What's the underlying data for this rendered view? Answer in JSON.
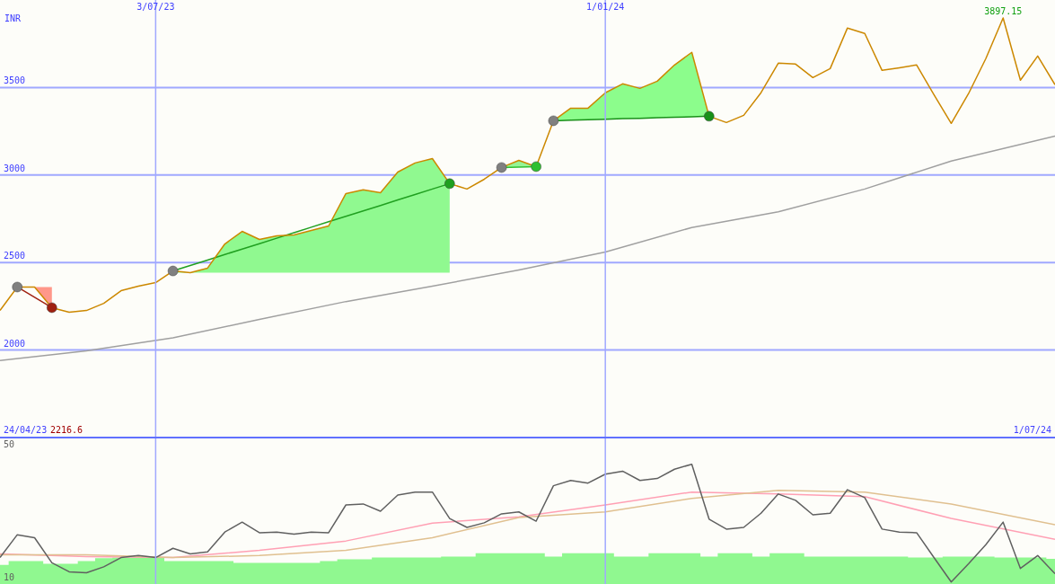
{
  "chart_data": [
    {
      "type": "line",
      "ylabel": "INR",
      "xlim": [
        "2023-05-01",
        "2024-07-01"
      ],
      "ylim": [
        1500,
        4000
      ],
      "yticks": [
        2000,
        2500,
        3000,
        3500
      ],
      "xticks": [
        {
          "value": "2023-07-03",
          "label": "3/07/23"
        },
        {
          "value": "2024-01-01",
          "label": "1/01/24"
        }
      ],
      "grid": true,
      "x": [
        "2023-05-01",
        "2023-05-08",
        "2023-05-15",
        "2023-05-22",
        "2023-05-29",
        "2023-06-05",
        "2023-06-12",
        "2023-06-19",
        "2023-06-26",
        "2023-07-03",
        "2023-07-10",
        "2023-07-17",
        "2023-07-24",
        "2023-07-31",
        "2023-08-07",
        "2023-08-14",
        "2023-08-21",
        "2023-08-28",
        "2023-09-04",
        "2023-09-11",
        "2023-09-18",
        "2023-09-25",
        "2023-10-02",
        "2023-10-09",
        "2023-10-16",
        "2023-10-23",
        "2023-10-30",
        "2023-11-06",
        "2023-11-13",
        "2023-11-20",
        "2023-11-27",
        "2023-12-04",
        "2023-12-11",
        "2023-12-18",
        "2023-12-25",
        "2024-01-01",
        "2024-01-08",
        "2024-01-15",
        "2024-01-22",
        "2024-01-29",
        "2024-02-05",
        "2024-02-12",
        "2024-02-19",
        "2024-02-26",
        "2024-03-04",
        "2024-03-11",
        "2024-03-18",
        "2024-03-25",
        "2024-04-01",
        "2024-04-08",
        "2024-04-15",
        "2024-04-22",
        "2024-04-29",
        "2024-05-06",
        "2024-05-13",
        "2024-05-20",
        "2024-05-27",
        "2024-06-03",
        "2024-06-10",
        "2024-06-17",
        "2024-06-24",
        "2024-07-01"
      ],
      "series": [
        {
          "color": "#a0a0a0",
          "x": [
            "2023-05-01",
            "2023-06-05",
            "2023-07-10",
            "2023-08-14",
            "2023-09-18",
            "2023-10-23",
            "2023-11-27",
            "2024-01-01",
            "2024-02-05",
            "2024-03-11",
            "2024-04-15",
            "2024-05-20",
            "2024-07-01"
          ],
          "values": [
            1940,
            1995,
            2070,
            2175,
            2277,
            2365,
            2457,
            2560,
            2700,
            2790,
            2920,
            3080,
            3223
          ]
        },
        {
          "color": "#a02010",
          "x": [
            "2023-05-08",
            "2023-05-15",
            "2023-05-22"
          ],
          "values": [
            2360,
            2301,
            2242
          ],
          "lower": [
            2360,
            2360,
            2242
          ],
          "upper": [
            2360,
            2360,
            2360
          ]
        },
        {
          "color": "#20a020",
          "x": [
            "2023-07-10",
            "2023-07-17",
            "2023-07-24",
            "2023-07-31",
            "2023-08-07",
            "2023-08-14",
            "2023-08-21",
            "2023-08-28",
            "2023-09-04",
            "2023-09-11",
            "2023-09-18",
            "2023-09-25",
            "2023-10-02",
            "2023-10-09",
            "2023-10-16",
            "2023-10-23",
            "2023-10-30"
          ],
          "values": [
            2452,
            2483,
            2514,
            2546,
            2577,
            2608,
            2639,
            2670,
            2702,
            2733,
            2764,
            2795,
            2826,
            2858,
            2889,
            2920,
            2951
          ],
          "lower": [
            2442,
            2442,
            2442,
            2442,
            2442,
            2442,
            2442,
            2442,
            2442,
            2442,
            2442,
            2442,
            2442,
            2442,
            2442,
            2442,
            2442
          ],
          "upper": [
            2452,
            2442,
            2468,
            2606,
            2678,
            2632,
            2653,
            2658,
            2683,
            2709,
            2894,
            2915,
            2899,
            3017,
            3069,
            3094,
            2951
          ]
        },
        {
          "color": "#30c030",
          "x": [
            "2023-11-20",
            "2023-11-27",
            "2023-12-04"
          ],
          "values": [
            3043,
            3045,
            3048
          ],
          "lower": [
            3043,
            3045,
            3048
          ],
          "upper": [
            3043,
            3084,
            3048
          ]
        },
        {
          "color": "#189018",
          "x": [
            "2023-12-11",
            "2023-12-18",
            "2023-12-25",
            "2024-01-01",
            "2024-01-08",
            "2024-01-15",
            "2024-01-22",
            "2024-01-29",
            "2024-02-05",
            "2024-02-12"
          ],
          "values": [
            3310,
            3313,
            3316,
            3319,
            3322,
            3324,
            3327,
            3330,
            3333,
            3336
          ],
          "lower": [
            3310,
            3313,
            3316,
            3319,
            3322,
            3324,
            3327,
            3330,
            3333,
            3336
          ],
          "upper": [
            3310,
            3382,
            3382,
            3470,
            3521,
            3495,
            3536,
            3629,
            3701,
            3336
          ]
        },
        {
          "color": "#cc8800",
          "values": [
            2226,
            2360,
            2360,
            2242,
            2216.6,
            2226,
            2267,
            2339,
            2365,
            2385,
            2452,
            2442,
            2468,
            2606,
            2678,
            2632,
            2653,
            2658,
            2683,
            2709,
            2894,
            2915,
            2899,
            3017,
            3069,
            3094,
            2951,
            2920,
            2976,
            3043,
            3084,
            3048,
            3310,
            3382,
            3382,
            3470,
            3521,
            3495,
            3536,
            3629,
            3701,
            3336,
            3300,
            3341,
            3470,
            3639,
            3634,
            3557,
            3608,
            3840,
            3809,
            3598,
            3613,
            3629,
            3459,
            3295,
            3465,
            3665,
            3897.15,
            3542,
            3680,
            3516
          ]
        },
        {
          "type": "scatter",
          "color": "#808080",
          "marker": "circle",
          "x": [
            "2023-05-08",
            "2023-07-10",
            "2023-11-20",
            "2023-12-11"
          ],
          "values": [
            2360,
            2452,
            3043,
            3310
          ]
        },
        {
          "type": "scatter",
          "colors": [
            "#a02010",
            "#20a020",
            "#30c030",
            "#189018"
          ],
          "marker": "circle",
          "x": [
            "2023-05-22",
            "2023-10-30",
            "2023-12-04",
            "2024-02-12"
          ],
          "values": [
            2242,
            2951,
            3048,
            3336
          ]
        }
      ],
      "annotations": [
        "24/04/23",
        "2216.6",
        "1/07/24",
        {
          "text": "3897.15",
          "x": "2024-06-10",
          "y": 3897.15
        }
      ]
    },
    {
      "type": "line",
      "xlim": [
        "2023-05-01",
        "2024-07-01"
      ],
      "ylim": [
        8,
        52
      ],
      "yticks": [
        10,
        50
      ],
      "xticks": [
        {
          "value": "2023-07-03",
          "label": null
        },
        {
          "value": "2024-01-01",
          "label": null
        }
      ],
      "grid": "x",
      "tick_labels": "y",
      "x": [
        "2023-05-01",
        "2023-05-08",
        "2023-05-15",
        "2023-05-22",
        "2023-05-29",
        "2023-06-05",
        "2023-06-12",
        "2023-06-19",
        "2023-06-26",
        "2023-07-03",
        "2023-07-10",
        "2023-07-17",
        "2023-07-24",
        "2023-07-31",
        "2023-08-07",
        "2023-08-14",
        "2023-08-21",
        "2023-08-28",
        "2023-09-04",
        "2023-09-11",
        "2023-09-18",
        "2023-09-25",
        "2023-10-02",
        "2023-10-09",
        "2023-10-16",
        "2023-10-23",
        "2023-10-30",
        "2023-11-06",
        "2023-11-13",
        "2023-11-20",
        "2023-11-27",
        "2023-12-04",
        "2023-12-11",
        "2023-12-18",
        "2023-12-25",
        "2024-01-01",
        "2024-01-08",
        "2024-01-15",
        "2024-01-22",
        "2024-01-29",
        "2024-02-05",
        "2024-02-12",
        "2024-02-19",
        "2024-02-26",
        "2024-03-04",
        "2024-03-11",
        "2024-03-18",
        "2024-03-25",
        "2024-04-01",
        "2024-04-08",
        "2024-04-15",
        "2024-04-22",
        "2024-04-29",
        "2024-05-06",
        "2024-05-13",
        "2024-05-20",
        "2024-05-27",
        "2024-06-03",
        "2024-06-10",
        "2024-06-17",
        "2024-06-24",
        "2024-07-01"
      ],
      "series": [
        {
          "type": "area",
          "color": "#90f890",
          "values": [
            13.8,
            14.9,
            14.9,
            14.1,
            14.1,
            14.9,
            15.8,
            16.0,
            16.0,
            16.0,
            14.9,
            14.9,
            14.9,
            14.9,
            14.4,
            14.4,
            14.4,
            14.4,
            14.4,
            14.9,
            15.5,
            15.5,
            16.0,
            16.0,
            16.0,
            16.0,
            16.3,
            16.3,
            17.3,
            17.3,
            17.3,
            17.3,
            16.3,
            17.3,
            17.3,
            17.3,
            16.3,
            16.3,
            17.3,
            17.3,
            17.3,
            16.3,
            17.3,
            17.3,
            16.3,
            17.3,
            17.3,
            16.3,
            16.3,
            16.3,
            16.3,
            16.3,
            16.3,
            16.0,
            16.0,
            16.3,
            16.3,
            16.3,
            16.0,
            16.0,
            16.0,
            15.6
          ]
        },
        {
          "color": "#ffa0b4",
          "x": [
            "2023-05-01",
            "2023-06-05",
            "2023-07-10",
            "2023-08-14",
            "2023-09-18",
            "2023-10-23",
            "2023-11-27",
            "2024-01-01",
            "2024-02-05",
            "2024-03-11",
            "2024-04-15",
            "2024-05-20",
            "2024-07-01"
          ],
          "values": [
            17.1,
            16.3,
            16.0,
            18.2,
            21.0,
            26.4,
            28.3,
            31.9,
            35.8,
            35.2,
            34.4,
            27.8,
            21.5
          ]
        },
        {
          "color": "#e0c090",
          "x": [
            "2023-05-01",
            "2023-06-05",
            "2023-07-10",
            "2023-08-14",
            "2023-09-18",
            "2023-10-23",
            "2023-11-27",
            "2024-01-01",
            "2024-02-05",
            "2024-03-11",
            "2024-04-15",
            "2024-05-20",
            "2024-07-01"
          ],
          "values": [
            16.8,
            16.8,
            16.0,
            16.6,
            18.2,
            22.0,
            28.1,
            29.8,
            33.9,
            36.3,
            35.8,
            32.2,
            25.9
          ]
        },
        {
          "color": "#606060",
          "values": [
            16.0,
            22.9,
            22.0,
            14.4,
            11.7,
            11.4,
            13.2,
            16.0,
            16.6,
            16.0,
            18.8,
            17.1,
            17.7,
            23.7,
            26.7,
            23.5,
            23.7,
            23.1,
            23.7,
            23.5,
            31.9,
            32.2,
            30.0,
            34.9,
            35.8,
            35.8,
            27.8,
            25.1,
            26.5,
            29.2,
            29.8,
            27.0,
            37.7,
            39.3,
            38.5,
            41.2,
            42.1,
            39.3,
            39.9,
            42.7,
            44.2,
            27.6,
            24.6,
            25.1,
            29.4,
            35.2,
            33.3,
            28.9,
            29.4,
            36.5,
            34.1,
            24.6,
            23.7,
            23.5,
            16.0,
            8.6,
            14.1,
            19.9,
            26.7,
            12.7,
            16.6,
            11.1
          ]
        }
      ]
    }
  ]
}
